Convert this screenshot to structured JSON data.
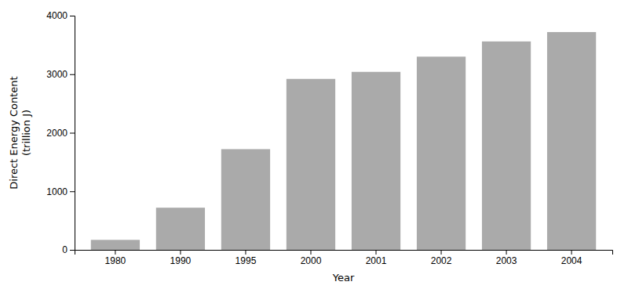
{
  "chart_data": {
    "type": "bar",
    "categories": [
      "1980",
      "1990",
      "1995",
      "2000",
      "2001",
      "2002",
      "2003",
      "2004"
    ],
    "values": [
      170,
      720,
      1720,
      2920,
      3040,
      3300,
      3560,
      3720
    ],
    "color": "#aaaaaa",
    "xlabel": "Year",
    "ylabel": "Direct Energy Content\n(trillion J)",
    "ylim": [
      0,
      4000
    ],
    "yticks": [
      0,
      1000,
      2000,
      3000,
      4000
    ],
    "grid": false
  }
}
